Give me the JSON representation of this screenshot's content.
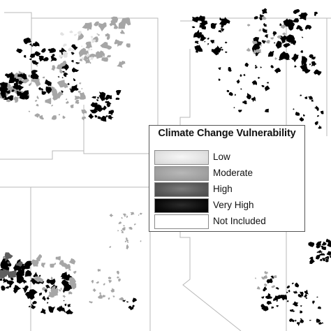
{
  "colors": {
    "background": "#ffffff",
    "state_boundary": "#b8b8b8",
    "low": "#e2e2e2",
    "moderate": "#a6a6a6",
    "high": "#5e5e5e",
    "very_high": "#000000",
    "not_included": "#ffffff"
  },
  "legend": {
    "title": "Climate Change Vulnerability",
    "items": [
      {
        "label": "Low",
        "key": "low"
      },
      {
        "label": "Moderate",
        "key": "moderate"
      },
      {
        "label": "High",
        "key": "high"
      },
      {
        "label": "Very High",
        "key": "very_high"
      },
      {
        "label": "Not Included",
        "key": "not_included"
      }
    ]
  },
  "panels": [
    {
      "position": "top-left",
      "dominant_classes": [
        "very_high",
        "moderate"
      ]
    },
    {
      "position": "top-right",
      "dominant_classes": [
        "very_high"
      ]
    },
    {
      "position": "bottom-left",
      "dominant_classes": [
        "very_high",
        "high",
        "moderate"
      ]
    },
    {
      "position": "bottom-right",
      "dominant_classes": [
        "very_high"
      ]
    }
  ]
}
